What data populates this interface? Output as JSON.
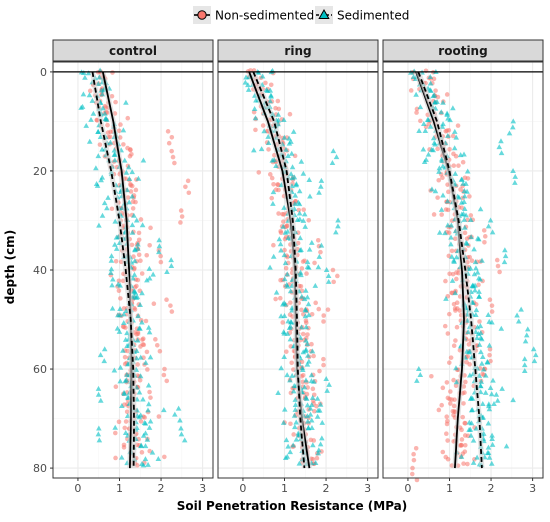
{
  "colors": {
    "non_sedimented": "#f8766d",
    "sedimented": "#00bfc4",
    "panel_border": "#333333",
    "strip_fill": "#d9d9d9",
    "grid_major": "#ebebeb",
    "grid_minor": "#f5f5f5"
  },
  "chart_data": {
    "type": "scatter",
    "xlabel": "Soil Penetration Resistance (MPa)",
    "ylabel": "depth (cm)",
    "xlim": [
      -0.6,
      3.25
    ],
    "ylim": [
      82,
      -2
    ],
    "x_ticks": [
      0,
      1,
      2,
      3
    ],
    "y_ticks": [
      0,
      20,
      40,
      60,
      80
    ],
    "grid": true,
    "legend": {
      "position": "top",
      "entries": [
        {
          "label": "Non-sedimented",
          "color": "#f8766d",
          "marker": "circle",
          "line": "solid"
        },
        {
          "label": "Sedimented",
          "color": "#00bfc4",
          "marker": "triangle",
          "line": "dashed"
        }
      ]
    },
    "panels": [
      {
        "label": "control",
        "reference_line_y": 0,
        "series": [
          {
            "name": "Non-sedimented",
            "profile": [
              [
                0,
                0.55
              ],
              [
                2,
                0.58
              ],
              [
                5,
                0.65
              ],
              [
                10,
                0.8
              ],
              [
                15,
                0.95
              ],
              [
                20,
                1.08
              ],
              [
                25,
                1.15
              ],
              [
                30,
                1.2
              ],
              [
                35,
                1.25
              ],
              [
                40,
                1.28
              ],
              [
                45,
                1.3
              ],
              [
                50,
                1.33
              ],
              [
                55,
                1.35
              ],
              [
                60,
                1.36
              ],
              [
                65,
                1.35
              ],
              [
                70,
                1.34
              ],
              [
                75,
                1.32
              ],
              [
                80,
                1.3
              ]
            ],
            "spread": 0.45,
            "outliers": [
              [
                2.2,
                12
              ],
              [
                2.3,
                16
              ],
              [
                2.6,
                22
              ],
              [
                2.5,
                28
              ],
              [
                2.0,
                36
              ],
              [
                2.2,
                46
              ],
              [
                1.9,
                54
              ],
              [
                2.1,
                60
              ]
            ],
            "fit": [
              [
                0,
                0.6
              ],
              [
                10,
                0.85
              ],
              [
                20,
                1.05
              ],
              [
                30,
                1.17
              ],
              [
                40,
                1.23
              ],
              [
                50,
                1.27
              ],
              [
                60,
                1.29
              ],
              [
                70,
                1.28
              ],
              [
                80,
                1.25
              ]
            ]
          },
          {
            "name": "Sedimented",
            "profile": [
              [
                0,
                0.35
              ],
              [
                2,
                0.4
              ],
              [
                5,
                0.5
              ],
              [
                10,
                0.65
              ],
              [
                15,
                0.78
              ],
              [
                20,
                0.9
              ],
              [
                25,
                1.0
              ],
              [
                30,
                1.08
              ],
              [
                35,
                1.15
              ],
              [
                40,
                1.2
              ],
              [
                45,
                1.25
              ],
              [
                50,
                1.3
              ],
              [
                55,
                1.33
              ],
              [
                60,
                1.35
              ],
              [
                65,
                1.38
              ],
              [
                70,
                1.4
              ],
              [
                75,
                1.38
              ],
              [
                80,
                1.35
              ]
            ],
            "spread": 0.5,
            "outliers": [
              [
                2.0,
                34
              ],
              [
                2.2,
                38
              ],
              [
                2.4,
                68
              ],
              [
                2.5,
                72
              ],
              [
                0.6,
                56
              ],
              [
                0.5,
                64
              ],
              [
                0.55,
                72
              ]
            ],
            "fit": [
              [
                0,
                0.35
              ],
              [
                10,
                0.55
              ],
              [
                20,
                0.8
              ],
              [
                30,
                1.0
              ],
              [
                40,
                1.15
              ],
              [
                50,
                1.27
              ],
              [
                60,
                1.33
              ],
              [
                70,
                1.35
              ],
              [
                80,
                1.34
              ]
            ]
          }
        ]
      },
      {
        "label": "ring",
        "reference_line_y": 0,
        "series": [
          {
            "name": "Non-sedimented",
            "profile": [
              [
                0,
                0.3
              ],
              [
                2,
                0.35
              ],
              [
                5,
                0.5
              ],
              [
                10,
                0.7
              ],
              [
                15,
                0.85
              ],
              [
                20,
                0.95
              ],
              [
                25,
                1.05
              ],
              [
                30,
                1.1
              ],
              [
                35,
                1.15
              ],
              [
                40,
                1.2
              ],
              [
                45,
                1.25
              ],
              [
                50,
                1.3
              ],
              [
                55,
                1.3
              ],
              [
                60,
                1.3
              ],
              [
                65,
                1.35
              ],
              [
                70,
                1.4
              ],
              [
                75,
                1.55
              ],
              [
                80,
                1.65
              ]
            ],
            "spread": 0.45,
            "outliers": [
              [
                1.8,
                34
              ],
              [
                2.2,
                40
              ],
              [
                2.0,
                48
              ],
              [
                1.9,
                58
              ],
              [
                1.7,
                64
              ]
            ],
            "fit": [
              [
                0,
                0.15
              ],
              [
                10,
                0.6
              ],
              [
                20,
                0.95
              ],
              [
                30,
                1.15
              ],
              [
                40,
                1.25
              ],
              [
                50,
                1.27
              ],
              [
                60,
                1.3
              ],
              [
                70,
                1.42
              ],
              [
                80,
                1.6
              ]
            ]
          },
          {
            "name": "Sedimented",
            "profile": [
              [
                0,
                0.3
              ],
              [
                2,
                0.35
              ],
              [
                5,
                0.5
              ],
              [
                10,
                0.75
              ],
              [
                15,
                0.95
              ],
              [
                20,
                1.1
              ],
              [
                25,
                1.2
              ],
              [
                30,
                1.25
              ],
              [
                35,
                1.3
              ],
              [
                40,
                1.3
              ],
              [
                45,
                1.28
              ],
              [
                50,
                1.25
              ],
              [
                55,
                1.22
              ],
              [
                60,
                1.25
              ],
              [
                65,
                1.3
              ],
              [
                70,
                1.35
              ],
              [
                75,
                1.4
              ],
              [
                80,
                1.45
              ]
            ],
            "spread": 0.55,
            "outliers": [
              [
                2.2,
                16
              ],
              [
                1.9,
                22
              ],
              [
                2.3,
                30
              ],
              [
                2.0,
                40
              ],
              [
                2.0,
                62
              ],
              [
                1.8,
                66
              ],
              [
                1.9,
                74
              ],
              [
                1.6,
                68
              ]
            ],
            "fit": [
              [
                0,
                0.25
              ],
              [
                10,
                0.75
              ],
              [
                20,
                1.05
              ],
              [
                30,
                1.2
              ],
              [
                40,
                1.27
              ],
              [
                50,
                1.3
              ],
              [
                60,
                1.32
              ],
              [
                70,
                1.38
              ],
              [
                80,
                1.48
              ]
            ]
          }
        ]
      },
      {
        "label": "rooting",
        "reference_line_y": 0,
        "series": [
          {
            "name": "Non-sedimented",
            "profile": [
              [
                0,
                0.3
              ],
              [
                2,
                0.35
              ],
              [
                5,
                0.5
              ],
              [
                10,
                0.7
              ],
              [
                15,
                0.85
              ],
              [
                20,
                1.0
              ],
              [
                25,
                1.1
              ],
              [
                30,
                1.2
              ],
              [
                35,
                1.25
              ],
              [
                40,
                1.3
              ],
              [
                45,
                1.3
              ],
              [
                50,
                1.35
              ],
              [
                55,
                1.3
              ],
              [
                60,
                1.25
              ],
              [
                65,
                1.2
              ],
              [
                70,
                1.2
              ],
              [
                75,
                1.2
              ],
              [
                80,
                1.25
              ]
            ],
            "spread": 0.5,
            "outliers": [
              [
                1.9,
                32
              ],
              [
                2.2,
                38
              ],
              [
                2.0,
                46
              ],
              [
                2.0,
                56
              ],
              [
                1.8,
                60
              ],
              [
                0.2,
                76
              ],
              [
                0.15,
                80
              ]
            ],
            "fit": [
              [
                0,
                0.2
              ],
              [
                10,
                0.62
              ],
              [
                20,
                0.98
              ],
              [
                30,
                1.2
              ],
              [
                40,
                1.3
              ],
              [
                50,
                1.35
              ],
              [
                60,
                1.3
              ],
              [
                70,
                1.2
              ],
              [
                80,
                1.13
              ]
            ]
          },
          {
            "name": "Sedimented",
            "profile": [
              [
                0,
                0.3
              ],
              [
                2,
                0.35
              ],
              [
                5,
                0.5
              ],
              [
                10,
                0.7
              ],
              [
                15,
                0.85
              ],
              [
                20,
                1.0
              ],
              [
                25,
                1.15
              ],
              [
                30,
                1.25
              ],
              [
                35,
                1.35
              ],
              [
                40,
                1.45
              ],
              [
                45,
                1.5
              ],
              [
                50,
                1.55
              ],
              [
                55,
                1.6
              ],
              [
                60,
                1.65
              ],
              [
                65,
                1.7
              ],
              [
                70,
                1.72
              ],
              [
                75,
                1.75
              ],
              [
                80,
                1.78
              ]
            ],
            "spread": 0.55,
            "outliers": [
              [
                2.5,
                10
              ],
              [
                2.2,
                14
              ],
              [
                2.6,
                20
              ],
              [
                2.0,
                30
              ],
              [
                2.3,
                36
              ],
              [
                2.7,
                48
              ],
              [
                2.9,
                52
              ],
              [
                3.05,
                56
              ],
              [
                2.2,
                64
              ],
              [
                2.8,
                58
              ],
              [
                0.25,
                60
              ]
            ],
            "fit": [
              [
                0,
                0.25
              ],
              [
                10,
                0.7
              ],
              [
                20,
                1.0
              ],
              [
                30,
                1.22
              ],
              [
                40,
                1.38
              ],
              [
                50,
                1.52
              ],
              [
                60,
                1.62
              ],
              [
                70,
                1.72
              ],
              [
                80,
                1.78
              ]
            ]
          }
        ]
      }
    ]
  }
}
